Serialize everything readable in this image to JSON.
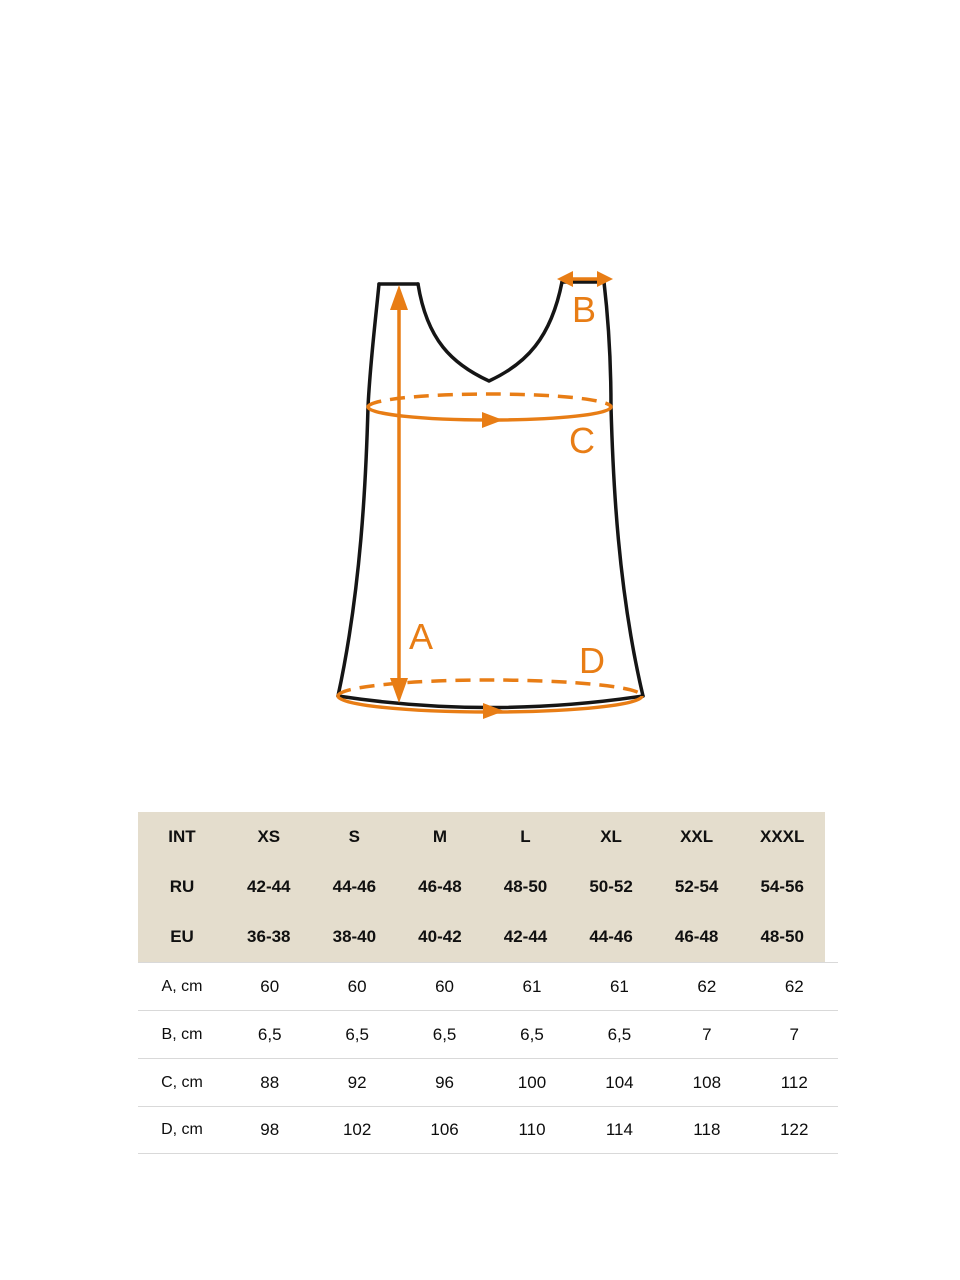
{
  "colors": {
    "accent": "#e87d15",
    "table_label": "#e6924d",
    "header_bg": "#e4ddcd",
    "divider": "#d9d9d9"
  },
  "diagram": {
    "description": "tank-top measurement diagram",
    "labels": {
      "length": "A",
      "strap": "B",
      "chest": "C",
      "hem": "D"
    }
  },
  "table": {
    "header_rows": [
      {
        "label": "INT",
        "values": [
          "XS",
          "S",
          "M",
          "L",
          "XL",
          "XXL",
          "XXXL"
        ]
      },
      {
        "label": "RU",
        "values": [
          "42-44",
          "44-46",
          "46-48",
          "48-50",
          "50-52",
          "52-54",
          "54-56"
        ]
      },
      {
        "label": "EU",
        "values": [
          "36-38",
          "38-40",
          "40-42",
          "42-44",
          "44-46",
          "46-48",
          "48-50"
        ]
      }
    ],
    "measurement_rows": [
      {
        "label": "A, cm",
        "values": [
          "60",
          "60",
          "60",
          "61",
          "61",
          "62",
          "62"
        ]
      },
      {
        "label": "B, cm",
        "values": [
          "6,5",
          "6,5",
          "6,5",
          "6,5",
          "6,5",
          "7",
          "7"
        ]
      },
      {
        "label": "C, cm",
        "values": [
          "88",
          "92",
          "96",
          "100",
          "104",
          "108",
          "112"
        ]
      },
      {
        "label": "D, cm",
        "values": [
          "98",
          "102",
          "106",
          "110",
          "114",
          "118",
          "122"
        ]
      }
    ]
  }
}
